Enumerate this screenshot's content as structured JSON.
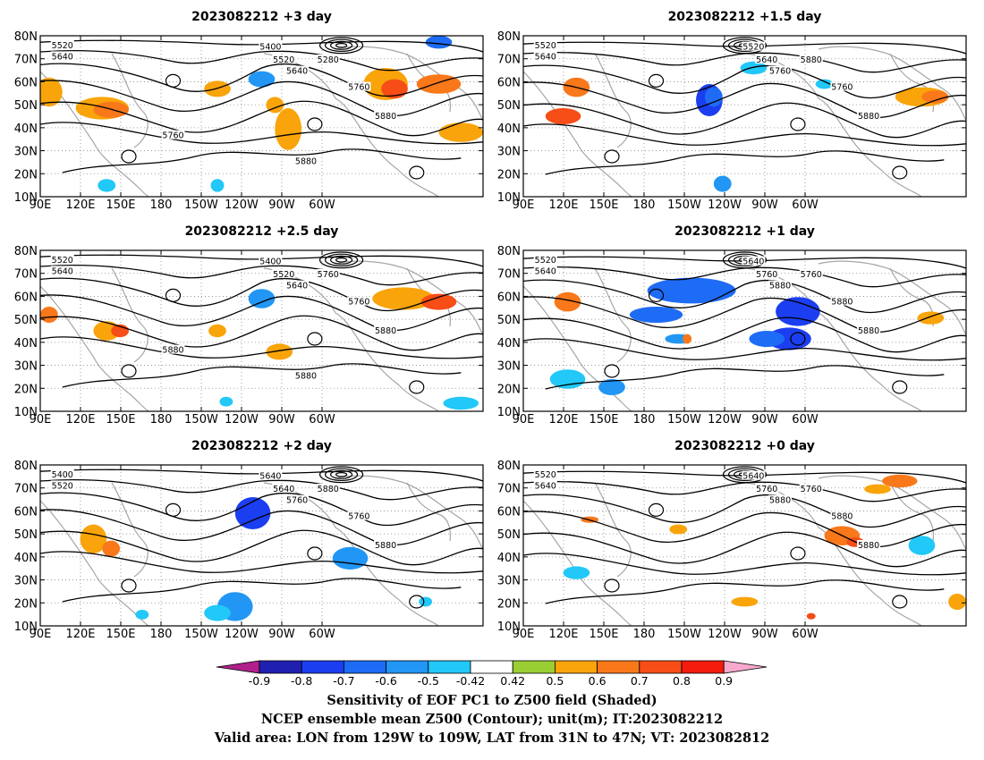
{
  "panels": [
    {
      "title": "2023082212 +3 day",
      "contours": [
        "5520",
        "5640",
        "5400",
        "5520",
        "5640",
        "5280",
        "5760",
        "5880",
        "5760",
        "5880"
      ]
    },
    {
      "title": "2023082212 +1.5 day",
      "contours": [
        "5520",
        "5640",
        "5520",
        "5640",
        "5760",
        "5880",
        "5760",
        "5880"
      ]
    },
    {
      "title": "2023082212 +2.5 day",
      "contours": [
        "5520",
        "5640",
        "5400",
        "5520",
        "5640",
        "5760",
        "5760",
        "5880",
        "5880",
        "5880"
      ]
    },
    {
      "title": "2023082212 +1 day",
      "contours": [
        "5520",
        "5640",
        "5640",
        "5760",
        "5880",
        "5760",
        "5880",
        "5880"
      ]
    },
    {
      "title": "2023082212 +2 day",
      "contours": [
        "5400",
        "5520",
        "5640",
        "5640",
        "5760",
        "5880",
        "5760",
        "5880"
      ]
    },
    {
      "title": "2023082212 +0 day",
      "contours": [
        "5520",
        "5640",
        "5640",
        "5760",
        "5880",
        "5760",
        "5880",
        "5880"
      ]
    }
  ],
  "axes": {
    "lat_labels": [
      "80N",
      "70N",
      "60N",
      "50N",
      "40N",
      "30N",
      "20N",
      "10N"
    ],
    "lon_labels": [
      "90E",
      "120E",
      "150E",
      "180",
      "150W",
      "120W",
      "90W",
      "60W"
    ]
  },
  "colorbar": {
    "labels": [
      "-0.9",
      "-0.8",
      "-0.7",
      "-0.6",
      "-0.5",
      "-0.42",
      "0.42",
      "0.5",
      "0.6",
      "0.7",
      "0.8",
      "0.9"
    ],
    "colors": [
      "#2020b0",
      "#1b3ef0",
      "#1e6cf5",
      "#2196f5",
      "#21c8f8",
      "#ffffff",
      "#9ace34",
      "#f9a40a",
      "#f8781a",
      "#f74d16",
      "#f41c0d"
    ],
    "low_extend_color": "#b0208a",
    "high_extend_color": "#f7a8cd"
  },
  "caption": {
    "line1": "Sensitivity of EOF PC1 to Z500 field (Shaded)",
    "line2": "NCEP ensemble mean Z500 (Contour); unit(m); IT:2023082212",
    "line3": "Valid area: LON from 129W to 109W, LAT from 31N to 47N; VT: 2023082812"
  }
}
